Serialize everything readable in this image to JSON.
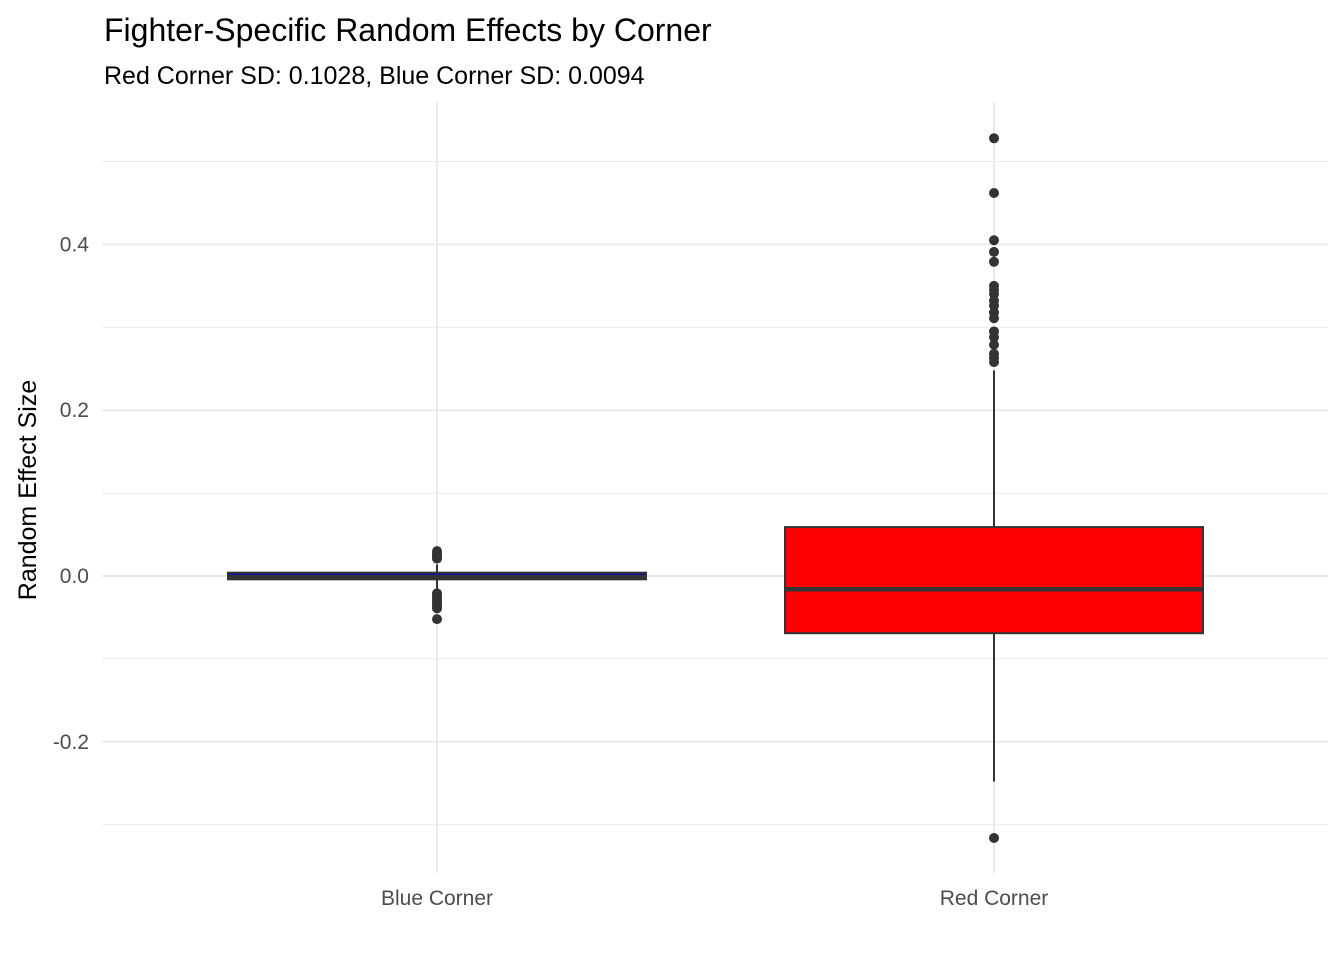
{
  "chart_data": {
    "type": "boxplot",
    "title": "Fighter-Specific Random Effects by Corner",
    "subtitle": "Red Corner SD: 0.1028, Blue Corner SD: 0.0094",
    "xlabel": "",
    "ylabel": "Random Effect Size",
    "ylim": [
      -0.3,
      0.5
    ],
    "y_ticks": [
      -0.2,
      0.0,
      0.2,
      0.4
    ],
    "y_tick_labels": [
      "-0.2",
      "0.0",
      "0.2",
      "0.4"
    ],
    "grid": true,
    "legend": "none",
    "categories": [
      "Blue Corner",
      "Red Corner"
    ],
    "series": [
      {
        "category": "Blue Corner",
        "fill": "#0000cd",
        "q1": -0.004,
        "median": -0.001,
        "q3": 0.004,
        "whisker_low": -0.016,
        "whisker_high": 0.014,
        "outliers": [
          0.03,
          0.027,
          0.025,
          0.023,
          0.021,
          -0.021,
          -0.024,
          -0.027,
          -0.03,
          -0.033,
          -0.036,
          -0.039,
          -0.052
        ]
      },
      {
        "category": "Red Corner",
        "fill": "#ff0000",
        "q1": -0.069,
        "median": -0.016,
        "q3": 0.059,
        "whisker_low": -0.248,
        "whisker_high": 0.248,
        "outliers": [
          0.528,
          0.462,
          0.405,
          0.391,
          0.379,
          0.35,
          0.345,
          0.34,
          0.332,
          0.326,
          0.318,
          0.311,
          0.295,
          0.288,
          0.279,
          0.268,
          0.263,
          0.258,
          -0.316
        ]
      }
    ]
  }
}
